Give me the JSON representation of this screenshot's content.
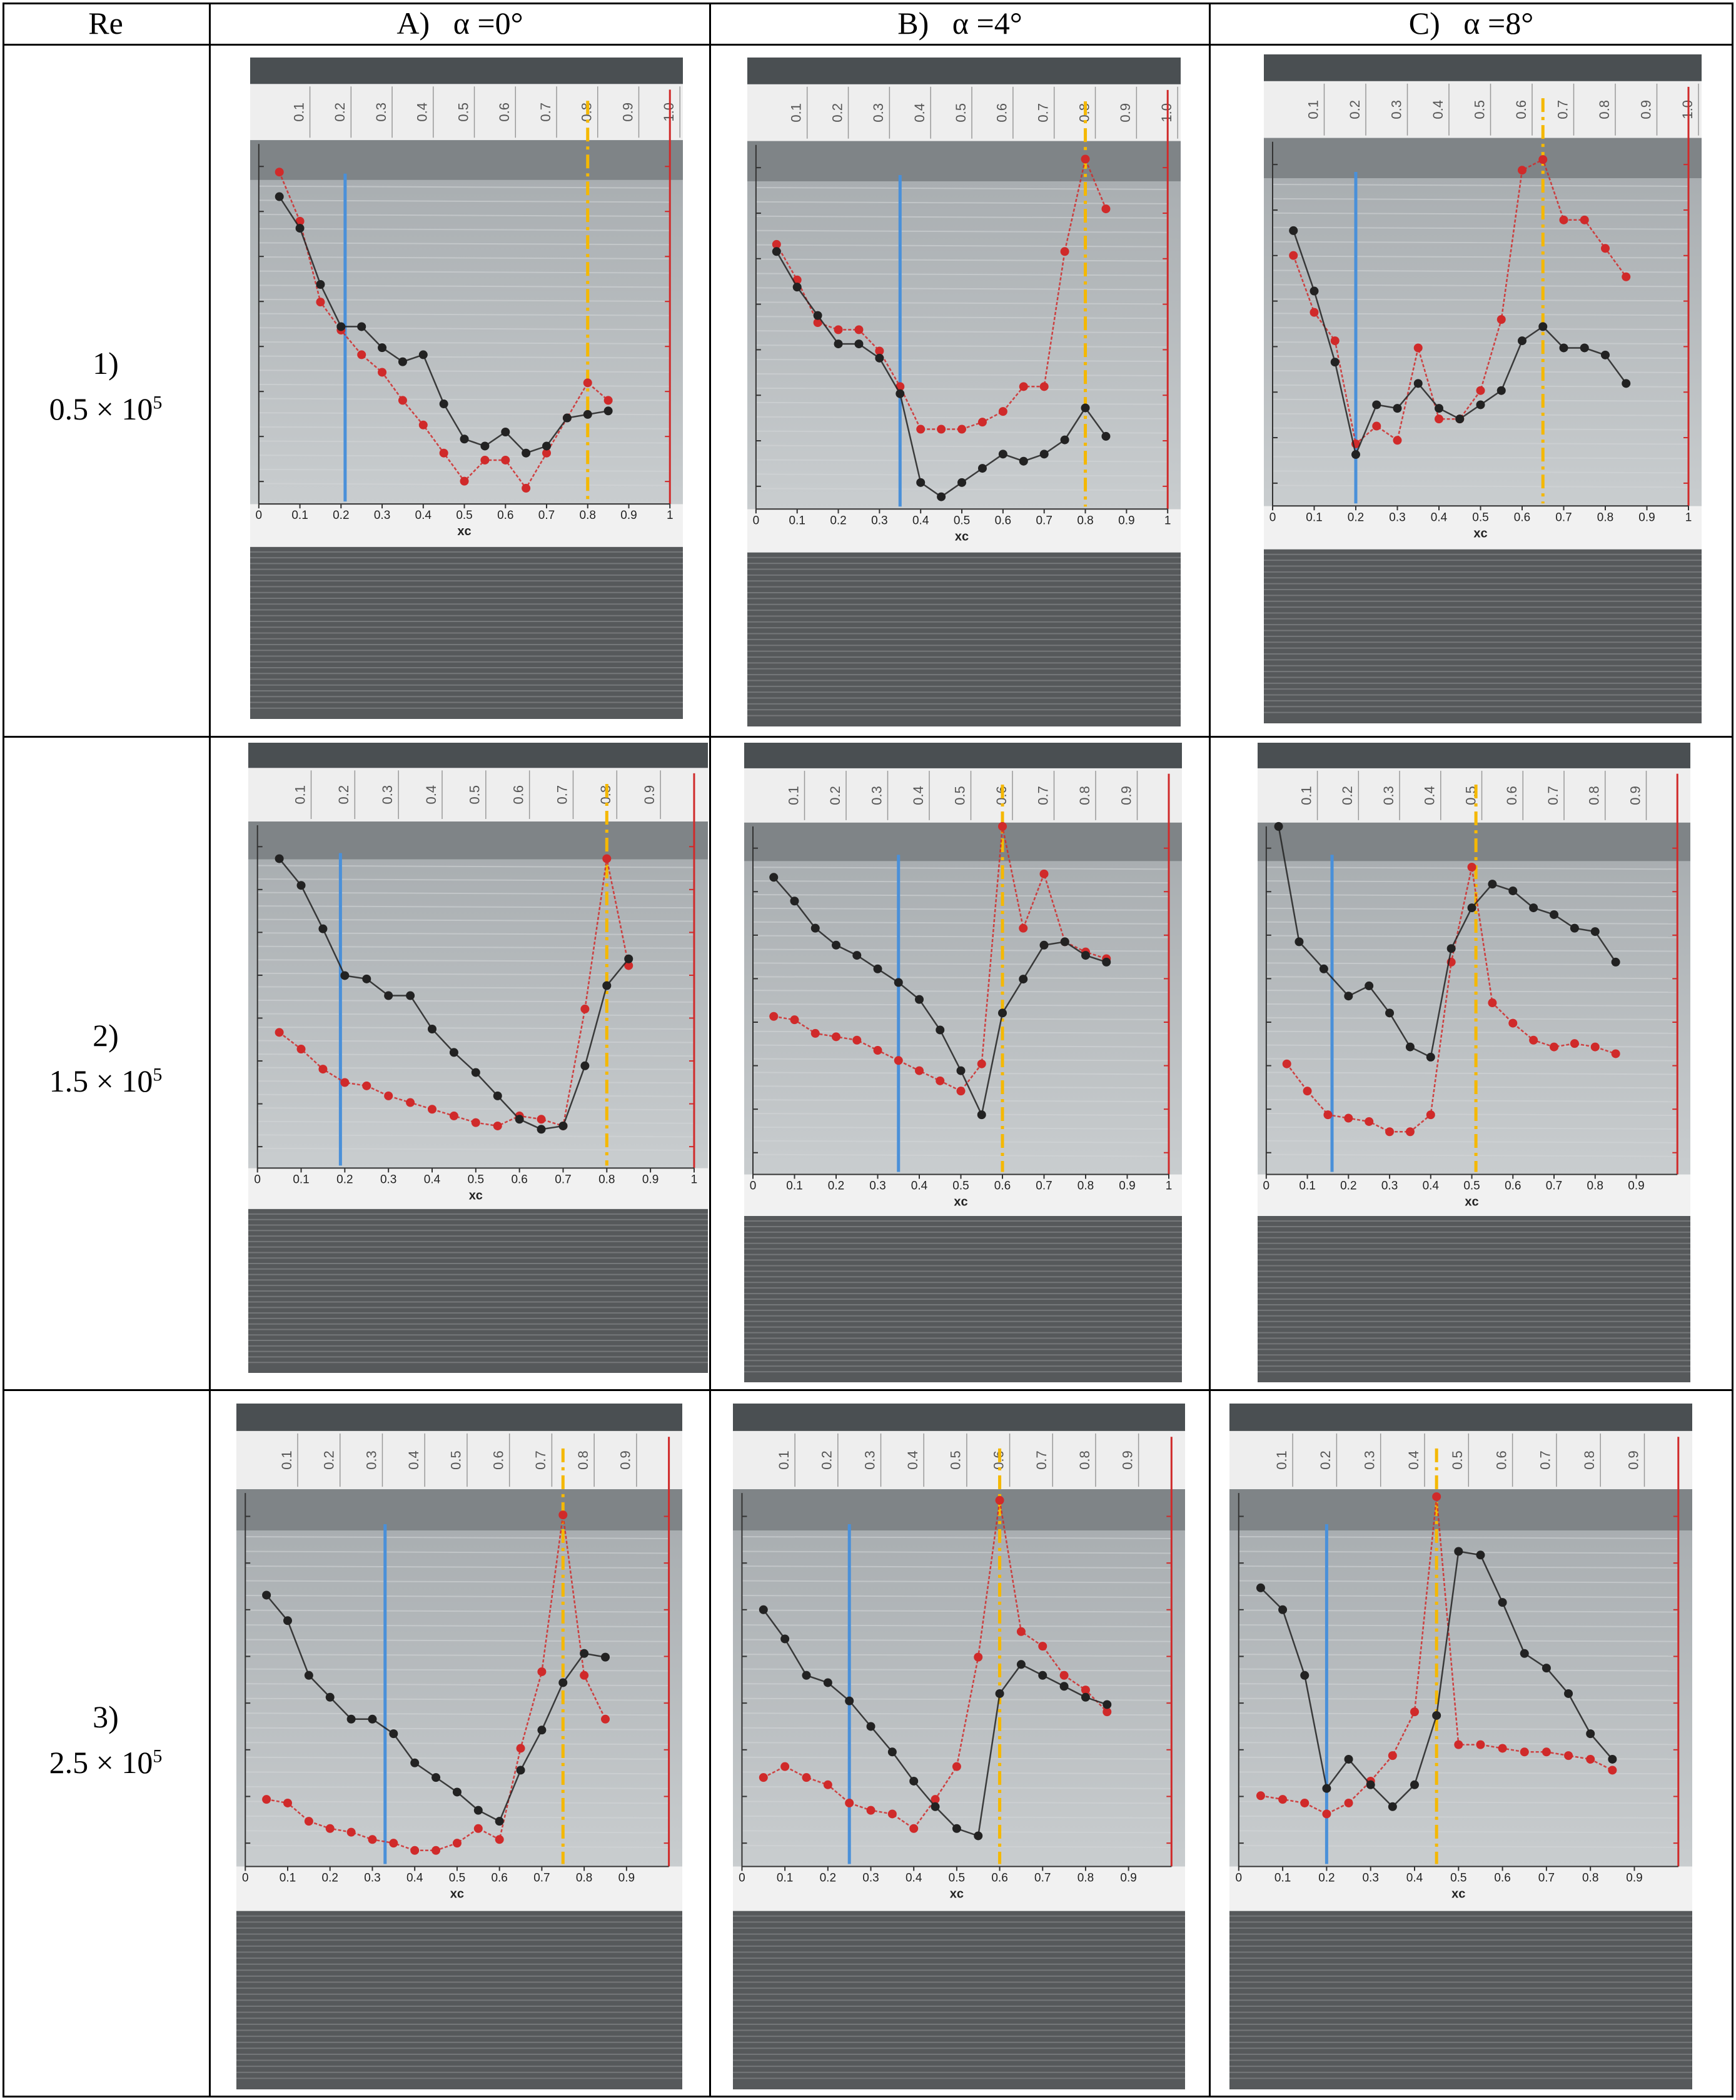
{
  "table": {
    "corner_label": "Re",
    "columns": [
      {
        "letter": "A)",
        "angle": "α =0°"
      },
      {
        "letter": "B)",
        "angle": "α =4°"
      },
      {
        "letter": "C)",
        "angle": "α =8°"
      }
    ],
    "rows": [
      {
        "number": "1)",
        "mantissa": "0.5 × 10",
        "exponent": "5"
      },
      {
        "number": "2)",
        "mantissa": "1.5 × 10",
        "exponent": "5"
      },
      {
        "number": "3)",
        "mantissa": "2.5 × 10",
        "exponent": "5"
      }
    ]
  },
  "colors": {
    "red_series": "#d02a2a",
    "black_series": "#222222",
    "blue_marker": "#4a90d9",
    "yellow_marker": "#f5b800"
  },
  "chart_data": [
    {
      "type": "line",
      "panel": "1A",
      "xlabel": "xc",
      "xlim": [
        0,
        1
      ],
      "ticks": [
        "0",
        "0.1",
        "0.2",
        "0.3",
        "0.4",
        "0.5",
        "0.6",
        "0.7",
        "0.8",
        "0.9",
        "1"
      ],
      "scale_labels": [
        "0.1",
        "0.2",
        "0.3",
        "0.4",
        "0.5",
        "0.6",
        "0.7",
        "0.8",
        "0.9",
        "1.0"
      ],
      "blue_line_x": 0.21,
      "yellow_line_x": 0.8,
      "series": [
        {
          "name": "red",
          "x": [
            0.05,
            0.1,
            0.15,
            0.2,
            0.25,
            0.3,
            0.35,
            0.4,
            0.45,
            0.5,
            0.55,
            0.6,
            0.65,
            0.7,
            0.75,
            0.8,
            0.85
          ],
          "y": [
            0.92,
            0.78,
            0.55,
            0.47,
            0.4,
            0.35,
            0.27,
            0.2,
            0.12,
            0.04,
            0.1,
            0.1,
            0.02,
            0.12,
            0.22,
            0.32,
            0.27
          ]
        },
        {
          "name": "black",
          "x": [
            0.05,
            0.1,
            0.15,
            0.2,
            0.25,
            0.3,
            0.35,
            0.4,
            0.45,
            0.5,
            0.55,
            0.6,
            0.65,
            0.7,
            0.75,
            0.8,
            0.85
          ],
          "y": [
            0.85,
            0.76,
            0.6,
            0.48,
            0.48,
            0.42,
            0.38,
            0.4,
            0.26,
            0.16,
            0.14,
            0.18,
            0.12,
            0.14,
            0.22,
            0.23,
            0.24
          ]
        }
      ]
    },
    {
      "type": "line",
      "panel": "1B",
      "xlabel": "xc",
      "xlim": [
        0,
        1
      ],
      "ticks": [
        "0",
        "0.1",
        "0.2",
        "0.3",
        "0.4",
        "0.5",
        "0.6",
        "0.7",
        "0.8",
        "0.9",
        "1"
      ],
      "scale_labels": [
        "0.1",
        "0.2",
        "0.3",
        "0.4",
        "0.5",
        "0.6",
        "0.7",
        "0.8",
        "0.9",
        "1.0"
      ],
      "blue_line_x": 0.35,
      "yellow_line_x": 0.8,
      "series": [
        {
          "name": "red",
          "x": [
            0.05,
            0.1,
            0.15,
            0.2,
            0.25,
            0.3,
            0.35,
            0.4,
            0.45,
            0.5,
            0.55,
            0.6,
            0.65,
            0.7,
            0.75,
            0.8,
            0.85
          ],
          "y": [
            0.72,
            0.62,
            0.5,
            0.48,
            0.48,
            0.42,
            0.32,
            0.2,
            0.2,
            0.2,
            0.22,
            0.25,
            0.32,
            0.32,
            0.7,
            0.96,
            0.82
          ]
        },
        {
          "name": "black",
          "x": [
            0.05,
            0.1,
            0.15,
            0.2,
            0.25,
            0.3,
            0.35,
            0.4,
            0.45,
            0.5,
            0.55,
            0.6,
            0.65,
            0.7,
            0.75,
            0.8,
            0.85
          ],
          "y": [
            0.7,
            0.6,
            0.52,
            0.44,
            0.44,
            0.4,
            0.3,
            0.05,
            0.01,
            0.05,
            0.09,
            0.13,
            0.11,
            0.13,
            0.17,
            0.26,
            0.18
          ]
        }
      ]
    },
    {
      "type": "line",
      "panel": "1C",
      "xlabel": "xc",
      "xlim": [
        0,
        1
      ],
      "ticks": [
        "0",
        "0.1",
        "0.2",
        "0.3",
        "0.4",
        "0.5",
        "0.6",
        "0.7",
        "0.8",
        "0.9",
        "1"
      ],
      "scale_labels": [
        "0.1",
        "0.2",
        "0.3",
        "0.4",
        "0.5",
        "0.6",
        "0.7",
        "0.8",
        "0.9",
        "1.0"
      ],
      "blue_line_x": 0.2,
      "yellow_line_x": 0.65,
      "series": [
        {
          "name": "red",
          "x": [
            0.05,
            0.1,
            0.15,
            0.2,
            0.25,
            0.3,
            0.35,
            0.4,
            0.45,
            0.5,
            0.55,
            0.6,
            0.65,
            0.7,
            0.75,
            0.8,
            0.85
          ],
          "y": [
            0.68,
            0.52,
            0.44,
            0.15,
            0.2,
            0.16,
            0.42,
            0.22,
            0.22,
            0.3,
            0.5,
            0.92,
            0.95,
            0.78,
            0.78,
            0.7,
            0.62
          ]
        },
        {
          "name": "black",
          "x": [
            0.05,
            0.1,
            0.15,
            0.2,
            0.25,
            0.3,
            0.35,
            0.4,
            0.45,
            0.5,
            0.55,
            0.6,
            0.65,
            0.7,
            0.75,
            0.8,
            0.85
          ],
          "y": [
            0.75,
            0.58,
            0.38,
            0.12,
            0.26,
            0.25,
            0.32,
            0.25,
            0.22,
            0.26,
            0.3,
            0.44,
            0.48,
            0.42,
            0.42,
            0.4,
            0.32
          ]
        }
      ]
    },
    {
      "type": "line",
      "panel": "2A",
      "xlabel": "xc",
      "xlim": [
        0,
        1
      ],
      "ticks": [
        "0",
        "0.1",
        "0.2",
        "0.3",
        "0.4",
        "0.5",
        "0.6",
        "0.7",
        "0.8",
        "0.9",
        "1"
      ],
      "scale_labels": [
        "0.1",
        "0.2",
        "0.3",
        "0.4",
        "0.5",
        "0.6",
        "0.7",
        "0.8",
        "0.9"
      ],
      "blue_line_x": 0.19,
      "yellow_line_x": 0.8,
      "series": [
        {
          "name": "red",
          "x": [
            0.05,
            0.1,
            0.15,
            0.2,
            0.25,
            0.3,
            0.35,
            0.4,
            0.45,
            0.5,
            0.55,
            0.6,
            0.65,
            0.7,
            0.75,
            0.8,
            0.85
          ],
          "y": [
            0.38,
            0.33,
            0.27,
            0.23,
            0.22,
            0.19,
            0.17,
            0.15,
            0.13,
            0.11,
            0.1,
            0.13,
            0.12,
            0.1,
            0.45,
            0.9,
            0.58
          ]
        },
        {
          "name": "black",
          "x": [
            0.05,
            0.1,
            0.15,
            0.2,
            0.25,
            0.3,
            0.35,
            0.4,
            0.45,
            0.5,
            0.55,
            0.6,
            0.65,
            0.7,
            0.75,
            0.8,
            0.85
          ],
          "y": [
            0.9,
            0.82,
            0.69,
            0.55,
            0.54,
            0.49,
            0.49,
            0.39,
            0.32,
            0.26,
            0.19,
            0.12,
            0.09,
            0.1,
            0.28,
            0.52,
            0.6
          ]
        }
      ]
    },
    {
      "type": "line",
      "panel": "2B",
      "xlabel": "xc",
      "xlim": [
        0,
        1
      ],
      "ticks": [
        "0",
        "0.1",
        "0.2",
        "0.3",
        "0.4",
        "0.5",
        "0.6",
        "0.7",
        "0.8",
        "0.9",
        "1"
      ],
      "scale_labels": [
        "0.1",
        "0.2",
        "0.3",
        "0.4",
        "0.5",
        "0.6",
        "0.7",
        "0.8",
        "0.9"
      ],
      "blue_line_x": 0.35,
      "yellow_line_x": 0.6,
      "series": [
        {
          "name": "red",
          "x": [
            0.05,
            0.1,
            0.15,
            0.2,
            0.25,
            0.3,
            0.35,
            0.4,
            0.45,
            0.5,
            0.55,
            0.6,
            0.65,
            0.7,
            0.75,
            0.8,
            0.85
          ],
          "y": [
            0.44,
            0.43,
            0.39,
            0.38,
            0.37,
            0.34,
            0.31,
            0.28,
            0.25,
            0.22,
            0.3,
            1.0,
            0.7,
            0.86,
            0.66,
            0.63,
            0.61
          ]
        },
        {
          "name": "black",
          "x": [
            0.05,
            0.1,
            0.15,
            0.2,
            0.25,
            0.3,
            0.35,
            0.4,
            0.45,
            0.5,
            0.55,
            0.6,
            0.65,
            0.7,
            0.75,
            0.8,
            0.85
          ],
          "y": [
            0.85,
            0.78,
            0.7,
            0.65,
            0.62,
            0.58,
            0.54,
            0.49,
            0.4,
            0.28,
            0.15,
            0.45,
            0.55,
            0.65,
            0.66,
            0.62,
            0.6
          ]
        }
      ]
    },
    {
      "type": "line",
      "panel": "2C",
      "xlabel": "xc",
      "xlim": [
        0,
        1
      ],
      "ticks": [
        "0",
        "0.1",
        "0.2",
        "0.3",
        "0.4",
        "0.5",
        "0.6",
        "0.7",
        "0.8",
        "0.9"
      ],
      "scale_labels": [
        "0.1",
        "0.2",
        "0.3",
        "0.4",
        "0.5",
        "0.6",
        "0.7",
        "0.8",
        "0.9"
      ],
      "blue_line_x": 0.16,
      "yellow_line_x": 0.51,
      "series": [
        {
          "name": "red",
          "x": [
            0.05,
            0.1,
            0.15,
            0.2,
            0.25,
            0.3,
            0.35,
            0.4,
            0.45,
            0.5,
            0.55,
            0.6,
            0.65,
            0.7,
            0.75,
            0.8,
            0.85
          ],
          "y": [
            0.3,
            0.22,
            0.15,
            0.14,
            0.13,
            0.1,
            0.1,
            0.15,
            0.6,
            0.88,
            0.48,
            0.42,
            0.37,
            0.35,
            0.36,
            0.35,
            0.33
          ]
        },
        {
          "name": "black",
          "x": [
            0.03,
            0.08,
            0.14,
            0.2,
            0.25,
            0.3,
            0.35,
            0.4,
            0.45,
            0.5,
            0.55,
            0.6,
            0.65,
            0.7,
            0.75,
            0.8,
            0.85
          ],
          "y": [
            1.0,
            0.66,
            0.58,
            0.5,
            0.53,
            0.45,
            0.35,
            0.32,
            0.64,
            0.76,
            0.83,
            0.81,
            0.76,
            0.74,
            0.7,
            0.69,
            0.6
          ]
        }
      ]
    },
    {
      "type": "line",
      "panel": "3A",
      "xlabel": "xc",
      "xlim": [
        0,
        1
      ],
      "ticks": [
        "0",
        "0.1",
        "0.2",
        "0.3",
        "0.4",
        "0.5",
        "0.6",
        "0.7",
        "0.8",
        "0.9"
      ],
      "scale_labels": [
        "0.1",
        "0.2",
        "0.3",
        "0.4",
        "0.5",
        "0.6",
        "0.7",
        "0.8",
        "0.9"
      ],
      "blue_line_x": 0.33,
      "yellow_line_x": 0.75,
      "series": [
        {
          "name": "red",
          "x": [
            0.05,
            0.1,
            0.15,
            0.2,
            0.25,
            0.3,
            0.35,
            0.4,
            0.45,
            0.5,
            0.55,
            0.6,
            0.65,
            0.7,
            0.75,
            0.8,
            0.85
          ],
          "y": [
            0.16,
            0.15,
            0.1,
            0.08,
            0.07,
            0.05,
            0.04,
            0.02,
            0.02,
            0.04,
            0.08,
            0.05,
            0.3,
            0.51,
            0.94,
            0.5,
            0.38
          ]
        },
        {
          "name": "black",
          "x": [
            0.05,
            0.1,
            0.15,
            0.2,
            0.25,
            0.3,
            0.35,
            0.4,
            0.45,
            0.5,
            0.55,
            0.6,
            0.65,
            0.7,
            0.75,
            0.8,
            0.85
          ],
          "y": [
            0.72,
            0.65,
            0.5,
            0.44,
            0.38,
            0.38,
            0.34,
            0.26,
            0.22,
            0.18,
            0.13,
            0.1,
            0.24,
            0.35,
            0.48,
            0.56,
            0.55
          ]
        }
      ]
    },
    {
      "type": "line",
      "panel": "3B",
      "xlabel": "xc",
      "xlim": [
        0,
        1
      ],
      "ticks": [
        "0",
        "0.1",
        "0.2",
        "0.3",
        "0.4",
        "0.5",
        "0.6",
        "0.7",
        "0.8",
        "0.9"
      ],
      "scale_labels": [
        "0.1",
        "0.2",
        "0.3",
        "0.4",
        "0.5",
        "0.6",
        "0.7",
        "0.8",
        "0.9"
      ],
      "blue_line_x": 0.25,
      "yellow_line_x": 0.6,
      "series": [
        {
          "name": "red",
          "x": [
            0.05,
            0.1,
            0.15,
            0.2,
            0.25,
            0.3,
            0.35,
            0.4,
            0.45,
            0.5,
            0.55,
            0.6,
            0.65,
            0.7,
            0.75,
            0.8,
            0.85
          ],
          "y": [
            0.22,
            0.25,
            0.22,
            0.2,
            0.15,
            0.13,
            0.12,
            0.08,
            0.16,
            0.25,
            0.55,
            0.98,
            0.62,
            0.58,
            0.5,
            0.46,
            0.4
          ]
        },
        {
          "name": "black",
          "x": [
            0.05,
            0.1,
            0.15,
            0.2,
            0.25,
            0.3,
            0.35,
            0.4,
            0.45,
            0.5,
            0.55,
            0.6,
            0.65,
            0.7,
            0.75,
            0.8,
            0.85
          ],
          "y": [
            0.68,
            0.6,
            0.5,
            0.48,
            0.43,
            0.36,
            0.29,
            0.21,
            0.14,
            0.08,
            0.06,
            0.45,
            0.53,
            0.5,
            0.47,
            0.44,
            0.42
          ]
        }
      ]
    },
    {
      "type": "line",
      "panel": "3C",
      "xlabel": "xc",
      "xlim": [
        0,
        1
      ],
      "ticks": [
        "0",
        "0.1",
        "0.2",
        "0.3",
        "0.4",
        "0.5",
        "0.6",
        "0.7",
        "0.8",
        "0.9"
      ],
      "scale_labels": [
        "0.1",
        "0.2",
        "0.3",
        "0.4",
        "0.5",
        "0.6",
        "0.7",
        "0.8",
        "0.9"
      ],
      "blue_line_x": 0.2,
      "yellow_line_x": 0.45,
      "series": [
        {
          "name": "red",
          "x": [
            0.05,
            0.1,
            0.15,
            0.2,
            0.25,
            0.3,
            0.35,
            0.4,
            0.45,
            0.5,
            0.55,
            0.6,
            0.65,
            0.7,
            0.75,
            0.8,
            0.85
          ],
          "y": [
            0.17,
            0.16,
            0.15,
            0.12,
            0.15,
            0.21,
            0.28,
            0.4,
            0.99,
            0.31,
            0.31,
            0.3,
            0.29,
            0.29,
            0.28,
            0.27,
            0.24
          ]
        },
        {
          "name": "black",
          "x": [
            0.05,
            0.1,
            0.15,
            0.2,
            0.25,
            0.3,
            0.35,
            0.4,
            0.45,
            0.5,
            0.55,
            0.6,
            0.65,
            0.7,
            0.75,
            0.8,
            0.85
          ],
          "y": [
            0.74,
            0.68,
            0.5,
            0.19,
            0.27,
            0.2,
            0.14,
            0.2,
            0.39,
            0.84,
            0.83,
            0.7,
            0.56,
            0.52,
            0.45,
            0.34,
            0.27
          ]
        }
      ]
    }
  ]
}
